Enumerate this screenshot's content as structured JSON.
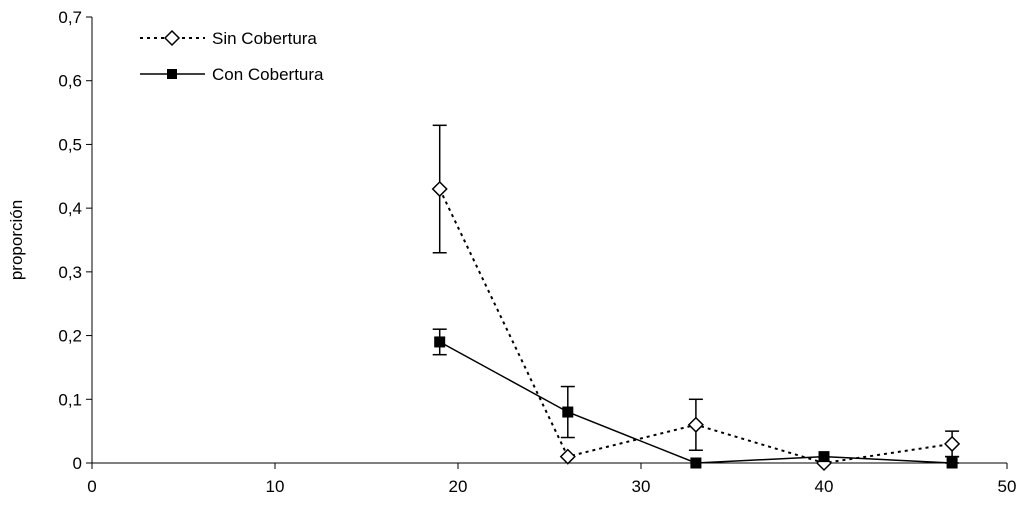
{
  "chart_data": {
    "type": "line",
    "title": "",
    "xlabel": "",
    "ylabel": "proporción",
    "xlim": [
      0,
      50
    ],
    "ylim": [
      0,
      0.7
    ],
    "x_ticks": [
      0,
      10,
      20,
      30,
      40,
      50
    ],
    "x_tick_labels": [
      "0",
      "10",
      "20",
      "30",
      "40",
      "50"
    ],
    "y_ticks": [
      0,
      0.1,
      0.2,
      0.3,
      0.4,
      0.5,
      0.6,
      0.7
    ],
    "y_tick_labels": [
      "0",
      "0,1",
      "0,2",
      "0,3",
      "0,4",
      "0,5",
      "0,6",
      "0,7"
    ],
    "grid": false,
    "legend_position": "top-left",
    "series": [
      {
        "name": "Sin Cobertura",
        "line_style": "dotted",
        "marker": "open-diamond",
        "color": "#000000",
        "x": [
          19,
          26,
          33,
          40,
          47
        ],
        "y": [
          0.43,
          0.01,
          0.06,
          0.0,
          0.03
        ],
        "error_upper": [
          0.53,
          0.01,
          0.1,
          0.0,
          0.05
        ],
        "error_lower": [
          0.33,
          0.01,
          0.02,
          0.0,
          0.01
        ]
      },
      {
        "name": "Con Cobertura",
        "line_style": "solid",
        "marker": "filled-square",
        "color": "#000000",
        "x": [
          19,
          26,
          33,
          40,
          47
        ],
        "y": [
          0.19,
          0.08,
          0.0,
          0.01,
          0.0
        ],
        "error_upper": [
          0.21,
          0.12,
          0.0,
          0.01,
          0.01
        ],
        "error_lower": [
          0.17,
          0.04,
          0.0,
          0.01,
          0.0
        ]
      }
    ]
  }
}
